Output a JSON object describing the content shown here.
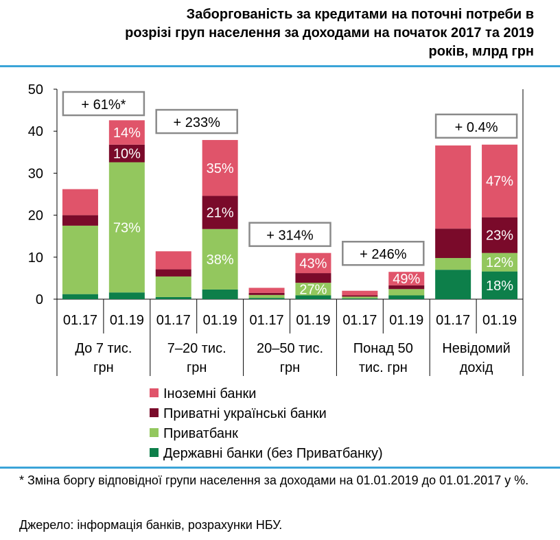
{
  "chart_data": {
    "type": "bar",
    "stacked": true,
    "title_lines": [
      "Заборгованість за кредитами на поточні потреби в",
      "розрізі груп населення за доходами на початок 2017 та 2019",
      "років, млрд грн"
    ],
    "ylim": [
      0,
      50
    ],
    "yticks": [
      "0",
      "10",
      "20",
      "30",
      "40",
      "50"
    ],
    "groups": [
      {
        "label_lines": [
          "До 7 тис.",
          "грн"
        ],
        "change": "+ 61%*",
        "bars": [
          {
            "label": "01.17",
            "values": [
              1.2,
              16.3,
              2.5,
              6.2
            ],
            "pct": [
              "",
              "",
              "",
              ""
            ]
          },
          {
            "label": "01.19",
            "values": [
              1.6,
              31.0,
              4.2,
              5.8
            ],
            "pct": [
              "",
              "73%",
              "10%",
              "14%"
            ]
          }
        ]
      },
      {
        "label_lines": [
          "7–20 тис.",
          "грн"
        ],
        "change": "+ 233%",
        "bars": [
          {
            "label": "01.17",
            "values": [
              0.5,
              4.9,
              1.7,
              4.3
            ],
            "pct": [
              "",
              "",
              "",
              ""
            ]
          },
          {
            "label": "01.19",
            "values": [
              2.3,
              14.4,
              7.9,
              13.3
            ],
            "pct": [
              "",
              "38%",
              "21%",
              "35%"
            ]
          }
        ]
      },
      {
        "label_lines": [
          "20–50 тис.",
          "грн"
        ],
        "change": "+ 314%",
        "bars": [
          {
            "label": "01.17",
            "values": [
              0.3,
              0.7,
              0.5,
              1.2
            ],
            "pct": [
              "",
              "",
              "",
              ""
            ]
          },
          {
            "label": "01.19",
            "values": [
              0.9,
              3.0,
              2.3,
              4.8
            ],
            "pct": [
              "",
              "27%",
              "",
              "43%"
            ]
          }
        ]
      },
      {
        "label_lines": [
          "Понад 50",
          "тис. грн"
        ],
        "change": "+ 246%",
        "bars": [
          {
            "label": "01.17",
            "values": [
              0.2,
              0.4,
              0.3,
              1.1
            ],
            "pct": [
              "",
              "",
              "",
              ""
            ]
          },
          {
            "label": "01.19",
            "values": [
              0.9,
              1.5,
              0.9,
              3.2
            ],
            "pct": [
              "",
              "",
              "",
              "49%"
            ]
          }
        ]
      },
      {
        "label_lines": [
          "Невідомий",
          "дохід"
        ],
        "change": "+ 0.4%",
        "bars": [
          {
            "label": "01.17",
            "values": [
              7.0,
              2.8,
              7.0,
              19.8
            ],
            "pct": [
              "",
              "",
              "",
              ""
            ]
          },
          {
            "label": "01.19",
            "values": [
              6.6,
              4.4,
              8.5,
              17.3
            ],
            "pct": [
              "18%",
              "12%",
              "23%",
              "47%"
            ]
          }
        ]
      }
    ],
    "series": [
      {
        "name": "Державні банки (без Приватбанку)",
        "color": "#0d7f4a"
      },
      {
        "name": "Приватбанк",
        "color": "#93c75e"
      },
      {
        "name": "Приватні українські банки",
        "color": "#7a0a2a"
      },
      {
        "name": "Іноземні банки",
        "color": "#e0546a"
      }
    ],
    "legend_order": [
      3,
      2,
      1,
      0
    ],
    "footnote": "* Зміна боргу відповідної групи населення за доходами на 01.01.2019 до 01.01.2017 у %.",
    "source": "Джерело: інформація банків, розрахунки НБУ."
  }
}
